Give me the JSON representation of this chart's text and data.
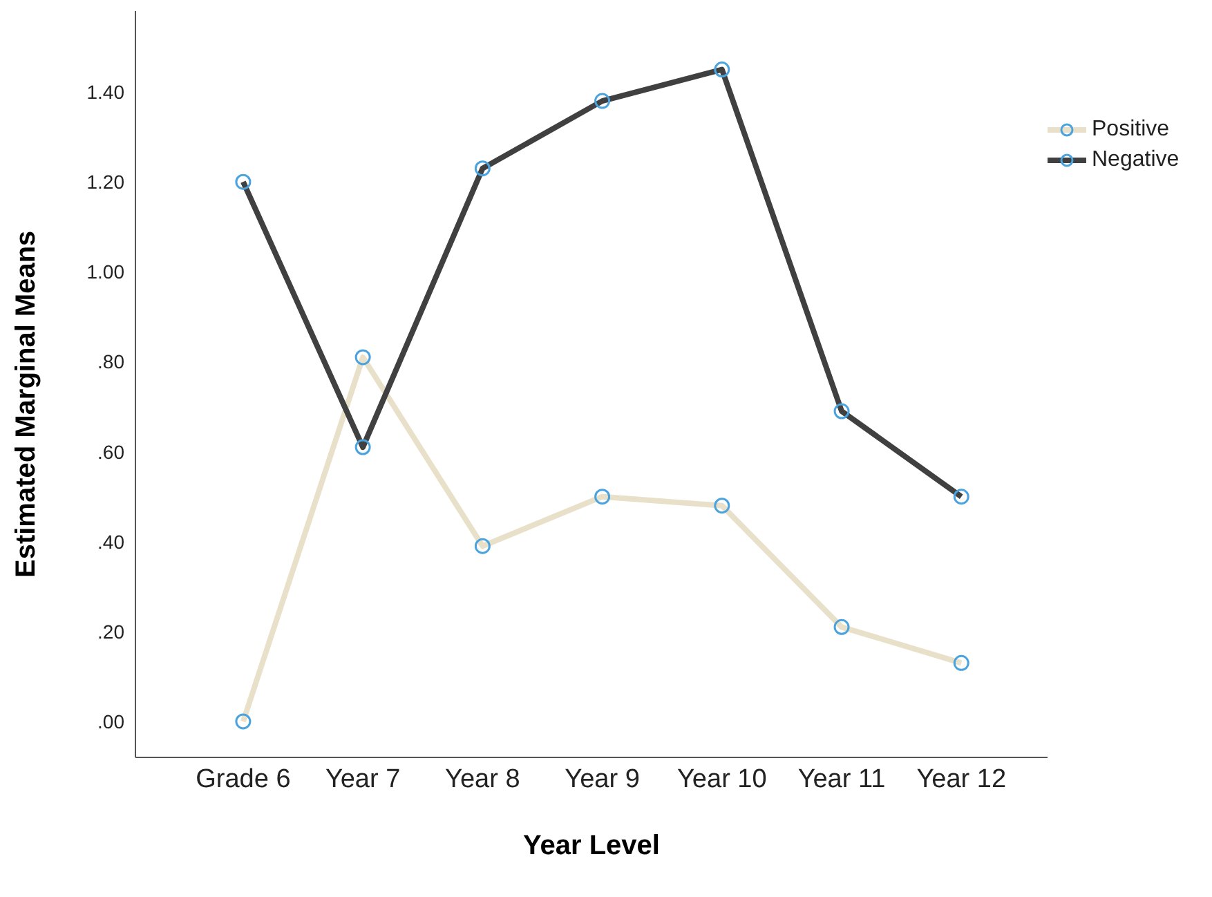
{
  "chart_data": {
    "type": "line",
    "xlabel": "Year Level",
    "ylabel": "Estimated Marginal Means",
    "categories": [
      "Grade 6",
      "Year 7",
      "Year 8",
      "Year 9",
      "Year 10",
      "Year 11",
      "Year 12"
    ],
    "series": [
      {
        "name": "Positive",
        "color": "#e8e0c8",
        "values": [
          0.0,
          0.81,
          0.39,
          0.5,
          0.48,
          0.21,
          0.13
        ]
      },
      {
        "name": "Negative",
        "color": "#404040",
        "values": [
          1.2,
          0.61,
          1.23,
          1.38,
          1.45,
          0.69,
          0.5
        ]
      }
    ],
    "ylim": [
      -0.08,
      1.58
    ],
    "yticks": [
      {
        "value": 0,
        "label": ".00"
      },
      {
        "value": 0.2,
        "label": ".20"
      },
      {
        "value": 0.4,
        "label": ".40"
      },
      {
        "value": 0.6,
        "label": ".60"
      },
      {
        "value": 0.8,
        "label": ".80"
      },
      {
        "value": 1,
        "label": "1.00"
      },
      {
        "value": 1.2,
        "label": "1.20"
      },
      {
        "value": 1.4,
        "label": "1.40"
      }
    ],
    "grid": false,
    "legend": "top right",
    "marker": "circle",
    "line_style": "solid"
  }
}
